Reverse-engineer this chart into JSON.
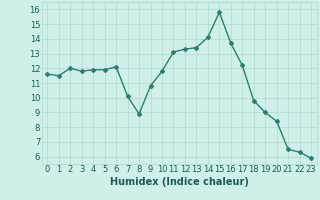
{
  "x": [
    0,
    1,
    2,
    3,
    4,
    5,
    6,
    7,
    8,
    9,
    10,
    11,
    12,
    13,
    14,
    15,
    16,
    17,
    18,
    19,
    20,
    21,
    22,
    23
  ],
  "y": [
    11.6,
    11.5,
    12.0,
    11.8,
    11.9,
    11.9,
    12.1,
    10.1,
    8.9,
    10.8,
    11.8,
    13.1,
    13.3,
    13.4,
    14.1,
    15.8,
    13.7,
    12.2,
    9.8,
    9.0,
    8.4,
    6.5,
    6.3,
    5.9
  ],
  "xlabel": "Humidex (Indice chaleur)",
  "line_color": "#2e7d6e",
  "marker": "D",
  "marker_size": 2,
  "bg_color": "#cff0ea",
  "grid_color": "#b0d8d0",
  "xlim": [
    -0.5,
    23.5
  ],
  "ylim": [
    5.5,
    16.5
  ],
  "yticks": [
    6,
    7,
    8,
    9,
    10,
    11,
    12,
    13,
    14,
    15,
    16
  ],
  "xtick_labels": [
    "0",
    "1",
    "2",
    "3",
    "4",
    "5",
    "6",
    "7",
    "8",
    "9",
    "10",
    "11",
    "12",
    "13",
    "14",
    "15",
    "16",
    "17",
    "18",
    "19",
    "20",
    "21",
    "22",
    "23"
  ],
  "xlabel_fontsize": 7,
  "tick_fontsize": 6,
  "label_color": "#1a5c50"
}
